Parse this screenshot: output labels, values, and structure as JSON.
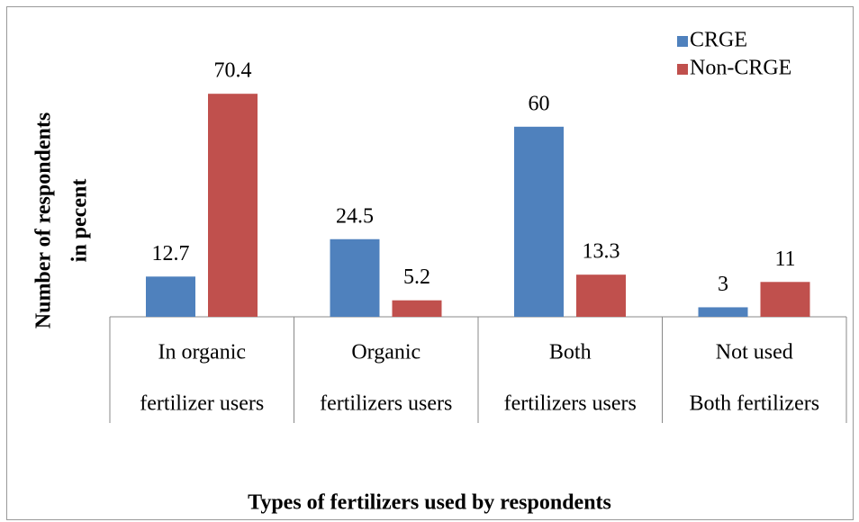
{
  "chart_data": {
    "type": "bar",
    "x_label": "Types of fertilizers used by respondents",
    "y_label": [
      "Number of respondents",
      "in pecent"
    ],
    "categories": [
      [
        "In organic",
        "fertilizer users"
      ],
      [
        "Organic",
        "fertilizers users"
      ],
      [
        "Both",
        "fertilizers users"
      ],
      [
        "Not used",
        "Both fertilizers"
      ]
    ],
    "series": [
      {
        "name": "CRGE",
        "color": "#4f81bd",
        "values": [
          12.7,
          24.5,
          60,
          3
        ]
      },
      {
        "name": "Non-CRGE",
        "color": "#c0504d",
        "values": [
          70.4,
          5.2,
          13.3,
          11
        ]
      }
    ]
  }
}
